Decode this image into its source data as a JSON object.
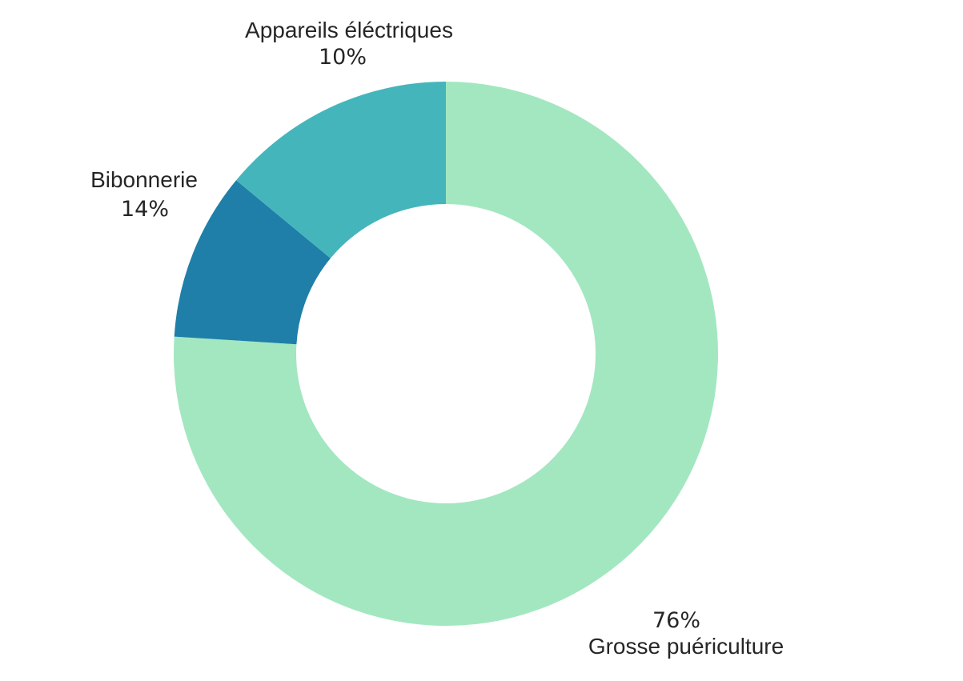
{
  "chart_data": {
    "type": "pie",
    "style": "donut",
    "title": "",
    "categories": [
      "Grosse puériculture",
      "Appareils éléctriques",
      "Bibonnerie"
    ],
    "values": [
      76,
      10,
      14
    ],
    "percent_labels": [
      "76%",
      "10%",
      "14%"
    ],
    "colors": [
      "#a3e7c1",
      "#1f7fa8",
      "#45b5bc"
    ],
    "start_angle": "top, clockwise",
    "legend": "none"
  }
}
